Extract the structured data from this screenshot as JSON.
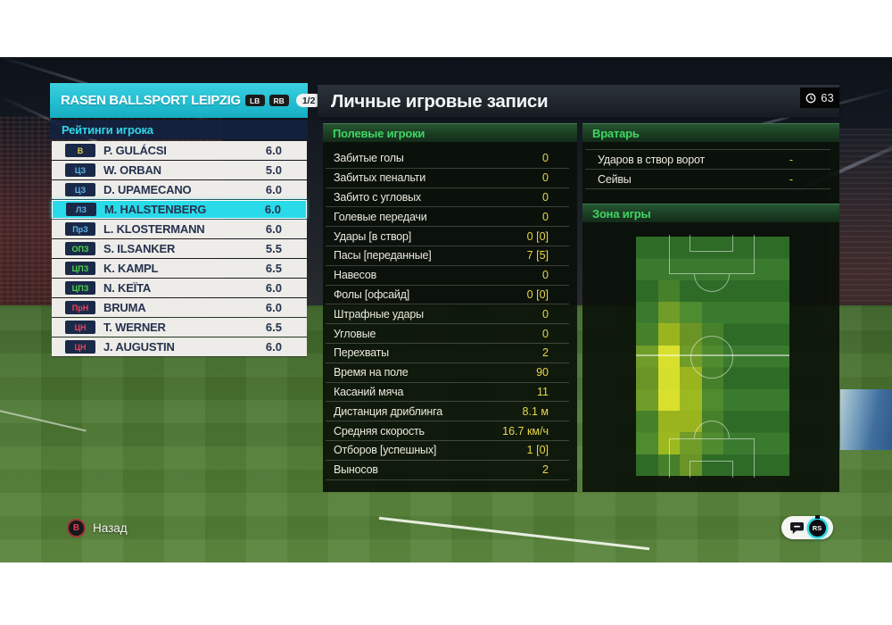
{
  "team_header": {
    "name": "RASEN BALLSPORT LEIPZIG",
    "lb": "LB",
    "rb": "RB",
    "page": "1/2"
  },
  "ratings": {
    "header": "Рейтинги игрока",
    "players": [
      {
        "pos": "В",
        "name": "P. GULÁCSI",
        "rating": "6.0",
        "role": "gk",
        "selected": false
      },
      {
        "pos": "ЦЗ",
        "name": "W. ORBAN",
        "rating": "5.0",
        "role": "def",
        "selected": false
      },
      {
        "pos": "ЦЗ",
        "name": "D. UPAMECANO",
        "rating": "6.0",
        "role": "def",
        "selected": false
      },
      {
        "pos": "ЛЗ",
        "name": "M. HALSTENBERG",
        "rating": "6.0",
        "role": "def",
        "selected": true
      },
      {
        "pos": "ПрЗ",
        "name": "L. KLOSTERMANN",
        "rating": "6.0",
        "role": "def",
        "selected": false
      },
      {
        "pos": "ОПЗ",
        "name": "S. ILSANKER",
        "rating": "5.5",
        "role": "mid",
        "selected": false
      },
      {
        "pos": "ЦПЗ",
        "name": "K. KAMPL",
        "rating": "6.5",
        "role": "mid",
        "selected": false
      },
      {
        "pos": "ЦПЗ",
        "name": "N. KEÏTA",
        "rating": "6.0",
        "role": "mid",
        "selected": false
      },
      {
        "pos": "ПрН",
        "name": "BRUMA",
        "rating": "6.0",
        "role": "fwd",
        "selected": false
      },
      {
        "pos": "ЦН",
        "name": "T. WERNER",
        "rating": "6.5",
        "role": "fwd",
        "selected": false
      },
      {
        "pos": "ЦН",
        "name": "J. AUGUSTIN",
        "rating": "6.0",
        "role": "fwd",
        "selected": false
      }
    ]
  },
  "main": {
    "title": "Личные игровые записи",
    "time": "63",
    "time_icon": "clock-icon"
  },
  "field_players": {
    "header": "Полевые игроки",
    "stats": [
      {
        "label": "Забитые голы",
        "value": "0"
      },
      {
        "label": "Забитых пенальти",
        "value": "0"
      },
      {
        "label": "Забито с угловых",
        "value": "0"
      },
      {
        "label": "Голевые передачи",
        "value": "0"
      },
      {
        "label": "Удары [в створ]",
        "value": "0 [0]"
      },
      {
        "label": "Пасы [переданные]",
        "value": "7 [5]"
      },
      {
        "label": "Навесов",
        "value": "0"
      },
      {
        "label": "Фолы [офсайд]",
        "value": "0 [0]"
      },
      {
        "label": "Штрафные удары",
        "value": "0"
      },
      {
        "label": "Угловые",
        "value": "0"
      },
      {
        "label": "Перехваты",
        "value": "2"
      },
      {
        "label": "Время на поле",
        "value": "90"
      },
      {
        "label": "Касаний мяча",
        "value": "11"
      },
      {
        "label": "Дистанция дриблинга",
        "value": "8.1 м"
      },
      {
        "label": "Средняя скорость",
        "value": "16.7 км/ч"
      },
      {
        "label": "Отборов [успешных]",
        "value": "1 [0]"
      },
      {
        "label": "Выносов",
        "value": "2"
      }
    ]
  },
  "goalkeeper": {
    "header": "Вратарь",
    "stats": [
      {
        "label": "Ударов в створ ворот",
        "value": "-"
      },
      {
        "label": "Сейвы",
        "value": "-"
      }
    ]
  },
  "zone": {
    "header": "Зона игры",
    "heatmap": {
      "cols": 7,
      "rows": 11,
      "grid": [
        [
          0,
          0,
          0,
          0,
          0,
          0,
          0
        ],
        [
          0,
          0,
          0,
          0,
          0,
          0,
          0
        ],
        [
          0,
          1,
          0,
          0,
          0,
          0,
          0
        ],
        [
          0,
          2,
          1,
          0,
          0,
          0,
          0
        ],
        [
          1,
          3,
          2,
          1,
          0,
          0,
          0
        ],
        [
          2,
          4,
          2,
          1,
          0,
          0,
          0
        ],
        [
          2,
          4,
          3,
          1,
          0,
          0,
          0
        ],
        [
          2,
          4,
          3,
          1,
          0,
          0,
          0
        ],
        [
          1,
          3,
          3,
          1,
          0,
          0,
          0
        ],
        [
          1,
          3,
          2,
          1,
          0,
          0,
          0
        ],
        [
          0,
          1,
          2,
          0,
          0,
          0,
          0
        ]
      ],
      "levels": [
        "transparent",
        "rgba(130,180,50,0.30)",
        "rgba(165,190,35,0.50)",
        "rgba(205,215,25,0.68)",
        "rgba(238,238,45,0.88)"
      ]
    }
  },
  "footer": {
    "back_button": "B",
    "back_label": "Назад",
    "chat_icon": "chat-bubble-icon",
    "stick_label": "RS"
  },
  "colors": {
    "accent_cyan": "#2fd7e8",
    "value_yellow": "#e8d84a",
    "section_green": "#41d563",
    "selected_row": "#29dbe9",
    "pos_gk": "#e6cf3a",
    "pos_def": "#5db5ea",
    "pos_mid": "#4ed44e",
    "pos_fwd": "#ee4158"
  }
}
